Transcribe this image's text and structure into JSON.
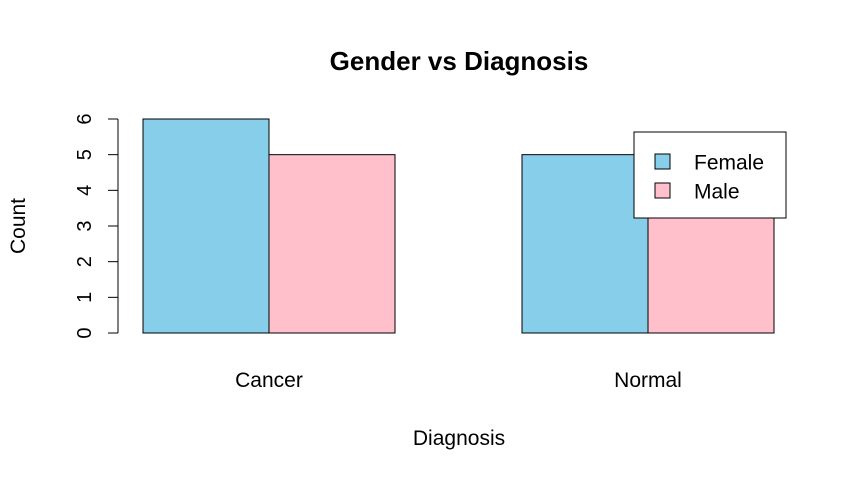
{
  "chart_data": {
    "type": "bar",
    "title": "Gender vs Diagnosis",
    "xlabel": "Diagnosis",
    "ylabel": "Count",
    "categories": [
      "Cancer",
      "Normal"
    ],
    "series": [
      {
        "name": "Female",
        "values": [
          6,
          5
        ],
        "color": "#87CEEB"
      },
      {
        "name": "Male",
        "values": [
          5,
          5
        ],
        "color": "#FFC0CB"
      }
    ],
    "ylim": [
      0,
      6
    ],
    "yticks": [
      "0",
      "1",
      "2",
      "3",
      "4",
      "5",
      "6"
    ],
    "grid": false,
    "legend_position": "top-right"
  }
}
